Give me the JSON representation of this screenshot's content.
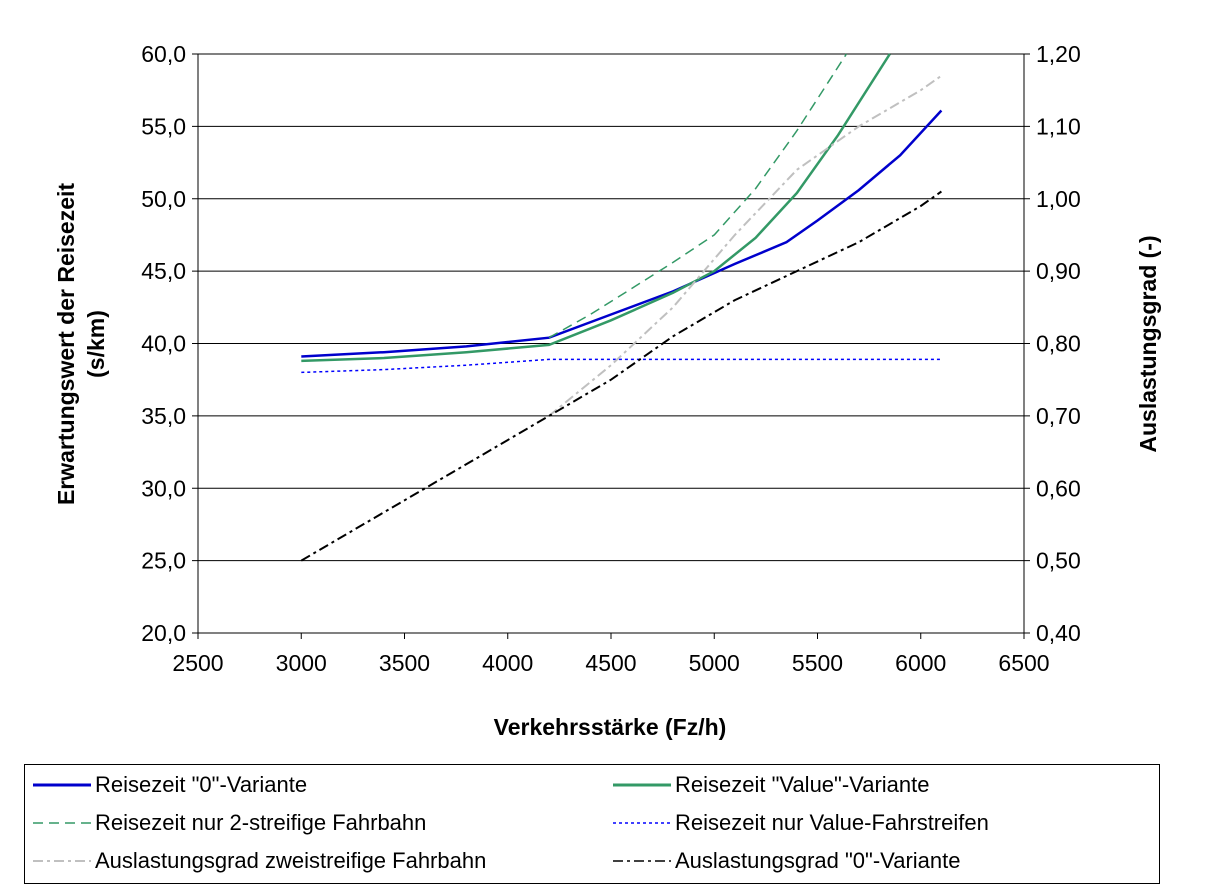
{
  "chart_data": {
    "type": "line",
    "title": "",
    "xlabel": "Verkehrsstärke (Fz/h)",
    "ylabel": "Erwartungswert der Reisezeit (s/km)",
    "y2label": "Auslastungsgrad (-)",
    "xlim": [
      2500,
      6500
    ],
    "ylim": [
      20,
      60
    ],
    "y2lim": [
      0.4,
      1.2
    ],
    "x_ticks": [
      "2500",
      "3000",
      "3500",
      "4000",
      "4500",
      "5000",
      "5500",
      "6000",
      "6500"
    ],
    "y_ticks": [
      "20,0",
      "25,0",
      "30,0",
      "35,0",
      "40,0",
      "45,0",
      "50,0",
      "55,0",
      "60,0"
    ],
    "y2_ticks": [
      "0,40",
      "0,50",
      "0,60",
      "0,70",
      "0,80",
      "0,90",
      "1,00",
      "1,10",
      "1,20"
    ],
    "grid": "horizontal",
    "legend_position": "bottom",
    "series": [
      {
        "name": "Reisezeit \"0\"-Variante",
        "axis": "left",
        "color": "#0000cc",
        "dash": "solid",
        "x": [
          3000,
          3400,
          3800,
          4200,
          4500,
          4800,
          5100,
          5350,
          5500,
          5700,
          5900,
          6100
        ],
        "y": [
          39.1,
          39.4,
          39.8,
          40.4,
          42.0,
          43.6,
          45.5,
          47.0,
          48.5,
          50.6,
          53.0,
          56.1
        ]
      },
      {
        "name": "Reisezeit \"Value\"-Variante",
        "axis": "left",
        "color": "#339966",
        "dash": "solid",
        "x": [
          3000,
          3400,
          3800,
          4200,
          4500,
          4800,
          5000,
          5200,
          5400,
          5600,
          5850
        ],
        "y": [
          38.8,
          39.0,
          39.4,
          39.9,
          41.6,
          43.5,
          45.0,
          47.3,
          50.4,
          54.4,
          60.0
        ]
      },
      {
        "name": "Reisezeit nur 2-streifige Fahrbahn",
        "axis": "left",
        "color": "#339966",
        "dash": "dashed",
        "x": [
          4200,
          4400,
          4600,
          4800,
          5000,
          5200,
          5400,
          5640
        ],
        "y": [
          40.4,
          42.0,
          43.8,
          45.6,
          47.5,
          50.7,
          54.7,
          60.0
        ]
      },
      {
        "name": "Reisezeit nur Value-Fahrstreifen",
        "axis": "left",
        "color": "#0000ff",
        "dash": "dotted",
        "x": [
          3000,
          3400,
          3800,
          4200,
          5000,
          6100
        ],
        "y": [
          38.0,
          38.2,
          38.5,
          38.9,
          38.9,
          38.9
        ]
      },
      {
        "name": "Auslastungsgrad zweistreifige Fahrbahn",
        "axis": "right",
        "color": "#c0c0c0",
        "dash": "dashdot",
        "x": [
          4200,
          4500,
          4800,
          5100,
          5400,
          5700,
          6000,
          6100
        ],
        "y": [
          0.7,
          0.77,
          0.85,
          0.95,
          1.04,
          1.1,
          1.15,
          1.17
        ]
      },
      {
        "name": "Auslastungsgrad \"0\"-Variante",
        "axis": "right",
        "color": "#000000",
        "dash": "dashdot",
        "x": [
          3000,
          3300,
          3600,
          3900,
          4200,
          4500,
          4800,
          5100,
          5400,
          5700,
          6000,
          6100
        ],
        "y": [
          0.5,
          0.55,
          0.6,
          0.65,
          0.7,
          0.75,
          0.81,
          0.86,
          0.9,
          0.94,
          0.99,
          1.01
        ]
      }
    ]
  },
  "legend": {
    "items": [
      "Reisezeit \"0\"-Variante",
      "Reisezeit \"Value\"-Variante",
      "Reisezeit nur 2-streifige Fahrbahn",
      "Reisezeit nur Value-Fahrstreifen",
      "Auslastungsgrad zweistreifige Fahrbahn",
      "Auslastungsgrad \"0\"-Variante"
    ]
  }
}
